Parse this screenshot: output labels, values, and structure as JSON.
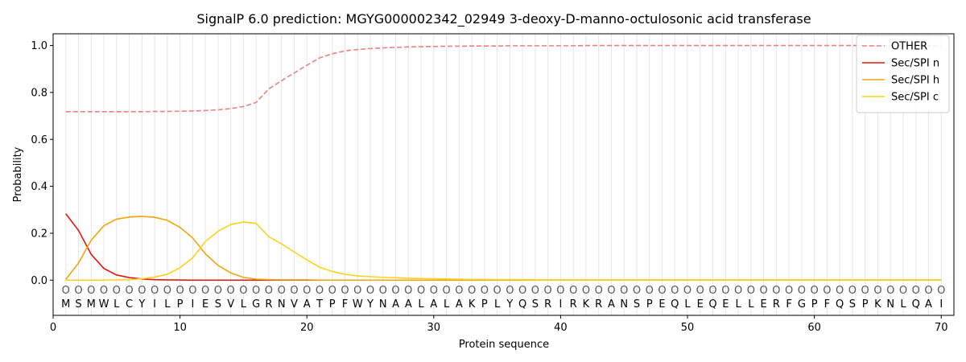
{
  "chart_data": {
    "type": "line",
    "title": "SignalP 6.0 prediction: MGYG000002342_02949 3-deoxy-D-manno-octulosonic acid transferase",
    "xlabel": "Protein sequence",
    "ylabel": "Probability",
    "xlim": [
      0,
      71
    ],
    "ylim": [
      -0.15,
      1.05
    ],
    "xticks": [
      0,
      10,
      20,
      30,
      40,
      50,
      60,
      70
    ],
    "yticks": [
      0.0,
      0.2,
      0.4,
      0.6,
      0.8,
      1.0
    ],
    "ytick_labels": [
      "0.0",
      "0.2",
      "0.4",
      "0.6",
      "0.8",
      "1.0"
    ],
    "grid": "vertical",
    "legend_placement": "top-right",
    "sequence": [
      "M",
      "S",
      "M",
      "W",
      "L",
      "C",
      "Y",
      "I",
      "L",
      "P",
      "I",
      "E",
      "S",
      "V",
      "L",
      "G",
      "R",
      "N",
      "V",
      "A",
      "T",
      "P",
      "F",
      "W",
      "Y",
      "N",
      "A",
      "A",
      "L",
      "A",
      "L",
      "A",
      "K",
      "P",
      "L",
      "Y",
      "Q",
      "S",
      "R",
      "I",
      "R",
      "K",
      "R",
      "A",
      "N",
      "S",
      "P",
      "E",
      "Q",
      "L",
      "E",
      "Q",
      "E",
      "L",
      "L",
      "E",
      "R",
      "F",
      "G",
      "P",
      "F",
      "Q",
      "S",
      "P",
      "K",
      "N",
      "L",
      "Q",
      "A",
      "I"
    ],
    "position_marker": "O",
    "x": [
      1,
      2,
      3,
      4,
      5,
      6,
      7,
      8,
      9,
      10,
      11,
      12,
      13,
      14,
      15,
      16,
      17,
      18,
      19,
      20,
      21,
      22,
      23,
      24,
      25,
      26,
      27,
      28,
      29,
      30,
      31,
      32,
      33,
      34,
      35,
      36,
      37,
      38,
      39,
      40,
      41,
      42,
      43,
      44,
      45,
      46,
      47,
      48,
      49,
      50,
      51,
      52,
      53,
      54,
      55,
      56,
      57,
      58,
      59,
      60,
      61,
      62,
      63,
      64,
      65,
      66,
      67,
      68,
      69,
      70
    ],
    "series": [
      {
        "name": "OTHER",
        "color": "#f08080",
        "style": "dashed",
        "values": [
          0.718,
          0.718,
          0.718,
          0.718,
          0.718,
          0.718,
          0.718,
          0.719,
          0.719,
          0.72,
          0.721,
          0.723,
          0.726,
          0.731,
          0.74,
          0.757,
          0.815,
          0.85,
          0.883,
          0.916,
          0.947,
          0.965,
          0.977,
          0.983,
          0.987,
          0.99,
          0.992,
          0.994,
          0.995,
          0.996,
          0.997,
          0.997,
          0.998,
          0.998,
          0.998,
          0.999,
          0.999,
          0.999,
          0.999,
          0.999,
          0.999,
          1,
          1,
          1,
          1,
          1,
          1,
          1,
          1,
          1,
          1,
          1,
          1,
          1,
          1,
          1,
          1,
          1,
          1,
          1,
          1,
          1,
          1,
          1,
          1,
          1,
          1,
          1,
          1,
          1
        ]
      },
      {
        "name": "Sec/SPI n",
        "color": "#e8160c",
        "style": "solid",
        "values": [
          0.283,
          0.212,
          0.11,
          0.05,
          0.022,
          0.011,
          0.005,
          0.002,
          0.001,
          0.0005,
          0,
          0,
          0,
          0,
          0,
          0,
          0,
          0,
          0,
          0,
          0,
          0,
          0,
          0,
          0,
          0,
          0,
          0,
          0,
          0,
          0,
          0,
          0,
          0,
          0,
          0,
          0,
          0,
          0,
          0,
          0,
          0,
          0,
          0,
          0,
          0,
          0,
          0,
          0,
          0,
          0,
          0,
          0,
          0,
          0,
          0,
          0,
          0,
          0,
          0,
          0,
          0,
          0,
          0,
          0,
          0,
          0,
          0,
          0,
          0
        ]
      },
      {
        "name": "Sec/SPI h",
        "color": "#f5a30a",
        "style": "solid",
        "values": [
          0.003,
          0.073,
          0.17,
          0.232,
          0.26,
          0.269,
          0.272,
          0.268,
          0.255,
          0.225,
          0.18,
          0.112,
          0.063,
          0.031,
          0.012,
          0.004,
          0.002,
          0.001,
          0.001,
          0.001,
          0,
          0,
          0,
          0,
          0,
          0,
          0,
          0,
          0,
          0,
          0,
          0,
          0,
          0,
          0,
          0,
          0,
          0,
          0,
          0,
          0,
          0,
          0,
          0,
          0,
          0,
          0,
          0,
          0,
          0,
          0,
          0,
          0,
          0,
          0,
          0,
          0,
          0,
          0,
          0,
          0,
          0,
          0,
          0,
          0,
          0,
          0,
          0,
          0,
          0
        ]
      },
      {
        "name": "Sec/SPI c",
        "color": "#ffd21a",
        "style": "solid",
        "values": [
          0,
          0,
          0,
          0,
          0.001,
          0.002,
          0.006,
          0.013,
          0.025,
          0.053,
          0.095,
          0.165,
          0.208,
          0.237,
          0.248,
          0.242,
          0.185,
          0.155,
          0.12,
          0.087,
          0.055,
          0.037,
          0.025,
          0.018,
          0.015,
          0.012,
          0.01,
          0.008,
          0.007,
          0.006,
          0.005,
          0.004,
          0.003,
          0.003,
          0.002,
          0.002,
          0.002,
          0.001,
          0.001,
          0.001,
          0.001,
          0.001,
          0.001,
          0.001,
          0.001,
          0.001,
          0.001,
          0.001,
          0.001,
          0.001,
          0.001,
          0.001,
          0.001,
          0.001,
          0.001,
          0.001,
          0.001,
          0.001,
          0.001,
          0.001,
          0.001,
          0.001,
          0.001,
          0.001,
          0.001,
          0.001,
          0.001,
          0.001,
          0.001,
          0.001
        ]
      }
    ]
  }
}
